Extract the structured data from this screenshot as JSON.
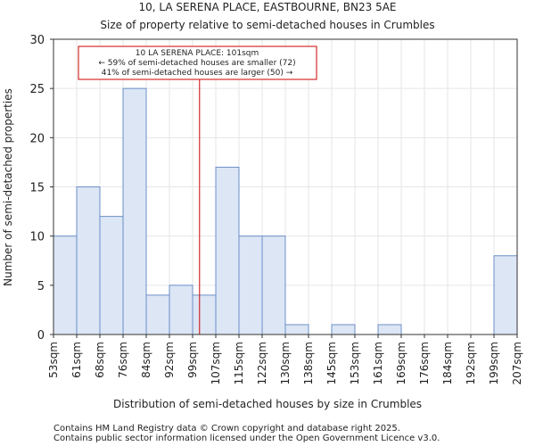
{
  "chart_data": {
    "type": "bar",
    "title": "10, LA SERENA PLACE, EASTBOURNE, BN23 5AE",
    "subtitle": "Size of property relative to semi-detached houses in Crumbles",
    "xlabel": "Distribution of semi-detached houses by size in Crumbles",
    "ylabel": "Number of semi-detached properties",
    "ylim": [
      0,
      30
    ],
    "yticks": [
      0,
      5,
      10,
      15,
      20,
      25,
      30
    ],
    "x_tick_labels": [
      "53sqm",
      "61sqm",
      "68sqm",
      "76sqm",
      "84sqm",
      "92sqm",
      "99sqm",
      "107sqm",
      "115sqm",
      "122sqm",
      "130sqm",
      "138sqm",
      "145sqm",
      "153sqm",
      "161sqm",
      "169sqm",
      "176sqm",
      "184sqm",
      "192sqm",
      "199sqm",
      "207sqm"
    ],
    "values": [
      10,
      15,
      12,
      25,
      4,
      5,
      4,
      17,
      10,
      10,
      1,
      0,
      1,
      0,
      1,
      0,
      0,
      0,
      0,
      8
    ],
    "grid": true,
    "bar_fill": "#dce6f5",
    "bar_edge": "#6d8fc7",
    "marker": {
      "value": 101,
      "bin_position": 6.3,
      "color": "#cc0000",
      "lines": [
        "10 LA SERENA PLACE: 101sqm",
        "← 59% of semi-detached houses are smaller (72)",
        "41% of semi-detached houses are larger (50) →"
      ]
    }
  },
  "footer": {
    "line1": "Contains HM Land Registry data © Crown copyright and database right 2025.",
    "line2": "Contains public sector information licensed under the Open Government Licence v3.0."
  }
}
